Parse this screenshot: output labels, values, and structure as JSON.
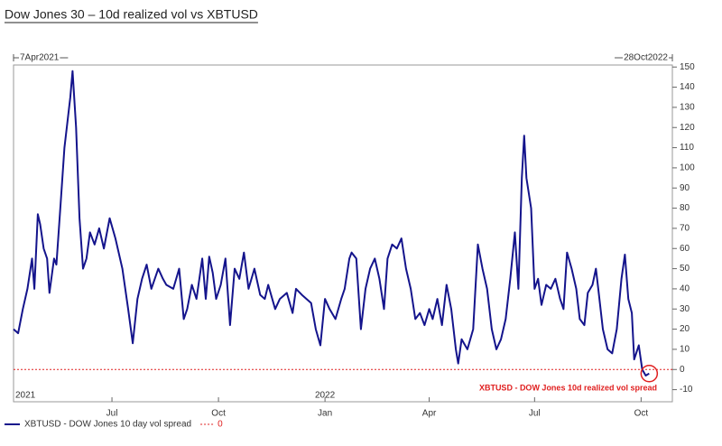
{
  "chart_data": {
    "type": "line",
    "title": "Dow Jones 30 – 10d realized vol vs XBTUSD",
    "range_labels": [
      "7Apr2021",
      "28Oct2022"
    ],
    "annotation": "XBTUSD - DOW Jones 10d realized vol spread",
    "annotation_color": "#e02020",
    "xlim": [
      "2021-04-07",
      "2022-10-28"
    ],
    "xticks": [
      {
        "value": "2021-07-01",
        "label": "Jul"
      },
      {
        "value": "2021-10-01",
        "label": "Oct"
      },
      {
        "value": "2022-01-01",
        "label": "Jan"
      },
      {
        "value": "2022-04-01",
        "label": "Apr"
      },
      {
        "value": "2022-07-01",
        "label": "Jul"
      },
      {
        "value": "2022-10-01",
        "label": "Oct"
      }
    ],
    "year_labels": [
      {
        "value": "2021-04-07",
        "label": "2021"
      },
      {
        "value": "2022-01-01",
        "label": "2022"
      }
    ],
    "ylim": [
      -16,
      151
    ],
    "yticks": [
      -10,
      0,
      10,
      20,
      30,
      40,
      50,
      60,
      70,
      80,
      90,
      100,
      110,
      120,
      130,
      140,
      150
    ],
    "legend": "bottom-left",
    "reference_lines": [
      {
        "name": "0",
        "value": 0,
        "color": "#e02020"
      }
    ],
    "x": [
      "2021-04-07",
      "2021-04-11",
      "2021-04-15",
      "2021-04-19",
      "2021-04-23",
      "2021-04-25",
      "2021-04-28",
      "2021-04-30",
      "2021-05-03",
      "2021-05-06",
      "2021-05-08",
      "2021-05-12",
      "2021-05-14",
      "2021-05-18",
      "2021-05-21",
      "2021-05-26",
      "2021-05-28",
      "2021-05-31",
      "2021-06-03",
      "2021-06-06",
      "2021-06-09",
      "2021-06-12",
      "2021-06-16",
      "2021-06-20",
      "2021-06-24",
      "2021-06-29",
      "2021-07-04",
      "2021-07-10",
      "2021-07-15",
      "2021-07-19",
      "2021-07-23",
      "2021-07-27",
      "2021-07-31",
      "2021-08-04",
      "2021-08-10",
      "2021-08-14",
      "2021-08-17",
      "2021-08-23",
      "2021-08-28",
      "2021-09-01",
      "2021-09-04",
      "2021-09-08",
      "2021-09-12",
      "2021-09-17",
      "2021-09-20",
      "2021-09-23",
      "2021-09-26",
      "2021-09-29",
      "2021-10-03",
      "2021-10-07",
      "2021-10-11",
      "2021-10-15",
      "2021-10-19",
      "2021-10-23",
      "2021-10-27",
      "2021-11-01",
      "2021-11-06",
      "2021-11-10",
      "2021-11-13",
      "2021-11-19",
      "2021-11-23",
      "2021-11-29",
      "2021-12-04",
      "2021-12-07",
      "2021-12-12",
      "2021-12-16",
      "2021-12-20",
      "2021-12-24",
      "2021-12-28",
      "2022-01-01",
      "2022-01-05",
      "2022-01-10",
      "2022-01-15",
      "2022-01-18",
      "2022-01-22",
      "2022-01-24",
      "2022-01-28",
      "2022-02-01",
      "2022-02-05",
      "2022-02-09",
      "2022-02-13",
      "2022-02-17",
      "2022-02-21",
      "2022-02-24",
      "2022-02-28",
      "2022-03-04",
      "2022-03-08",
      "2022-03-12",
      "2022-03-16",
      "2022-03-20",
      "2022-03-24",
      "2022-03-28",
      "2022-04-01",
      "2022-04-04",
      "2022-04-08",
      "2022-04-12",
      "2022-04-16",
      "2022-04-20",
      "2022-04-24",
      "2022-04-26",
      "2022-04-29",
      "2022-05-04",
      "2022-05-09",
      "2022-05-13",
      "2022-05-17",
      "2022-05-21",
      "2022-05-25",
      "2022-05-29",
      "2022-06-02",
      "2022-06-06",
      "2022-06-10",
      "2022-06-14",
      "2022-06-17",
      "2022-06-20",
      "2022-06-22",
      "2022-06-24",
      "2022-06-28",
      "2022-07-01",
      "2022-07-04",
      "2022-07-07",
      "2022-07-11",
      "2022-07-15",
      "2022-07-19",
      "2022-07-23",
      "2022-07-26",
      "2022-07-29",
      "2022-08-02",
      "2022-08-06",
      "2022-08-09",
      "2022-08-13",
      "2022-08-16",
      "2022-08-20",
      "2022-08-23",
      "2022-08-25",
      "2022-08-29",
      "2022-09-02",
      "2022-09-06",
      "2022-09-10",
      "2022-09-14",
      "2022-09-17",
      "2022-09-20",
      "2022-09-23",
      "2022-09-25",
      "2022-09-29",
      "2022-10-02",
      "2022-10-05",
      "2022-10-08"
    ],
    "series": [
      {
        "name": "XBTUSD - DOW Jones 10 day vol spread",
        "color": "#14148c",
        "values": [
          20,
          18,
          30,
          40,
          55,
          40,
          77,
          72,
          60,
          55,
          38,
          55,
          52,
          85,
          110,
          135,
          148,
          120,
          75,
          50,
          55,
          68,
          62,
          70,
          60,
          75,
          65,
          50,
          30,
          13,
          35,
          45,
          52,
          40,
          50,
          45,
          42,
          40,
          50,
          25,
          30,
          42,
          35,
          55,
          35,
          56,
          48,
          35,
          42,
          55,
          22,
          50,
          45,
          58,
          40,
          50,
          37,
          35,
          42,
          30,
          35,
          38,
          28,
          40,
          37,
          35,
          33,
          20,
          12,
          35,
          30,
          25,
          35,
          40,
          55,
          58,
          55,
          20,
          40,
          50,
          55,
          45,
          30,
          55,
          62,
          60,
          65,
          50,
          40,
          25,
          28,
          22,
          30,
          25,
          35,
          22,
          42,
          30,
          10,
          3,
          15,
          10,
          20,
          62,
          50,
          40,
          20,
          10,
          15,
          25,
          45,
          68,
          40,
          95,
          116,
          95,
          80,
          40,
          45,
          32,
          42,
          40,
          45,
          35,
          30,
          58,
          50,
          40,
          25,
          22,
          38,
          42,
          50,
          40,
          20,
          10,
          8,
          20,
          45,
          57,
          35,
          28,
          5,
          12,
          0,
          -3,
          -2
        ]
      }
    ]
  }
}
